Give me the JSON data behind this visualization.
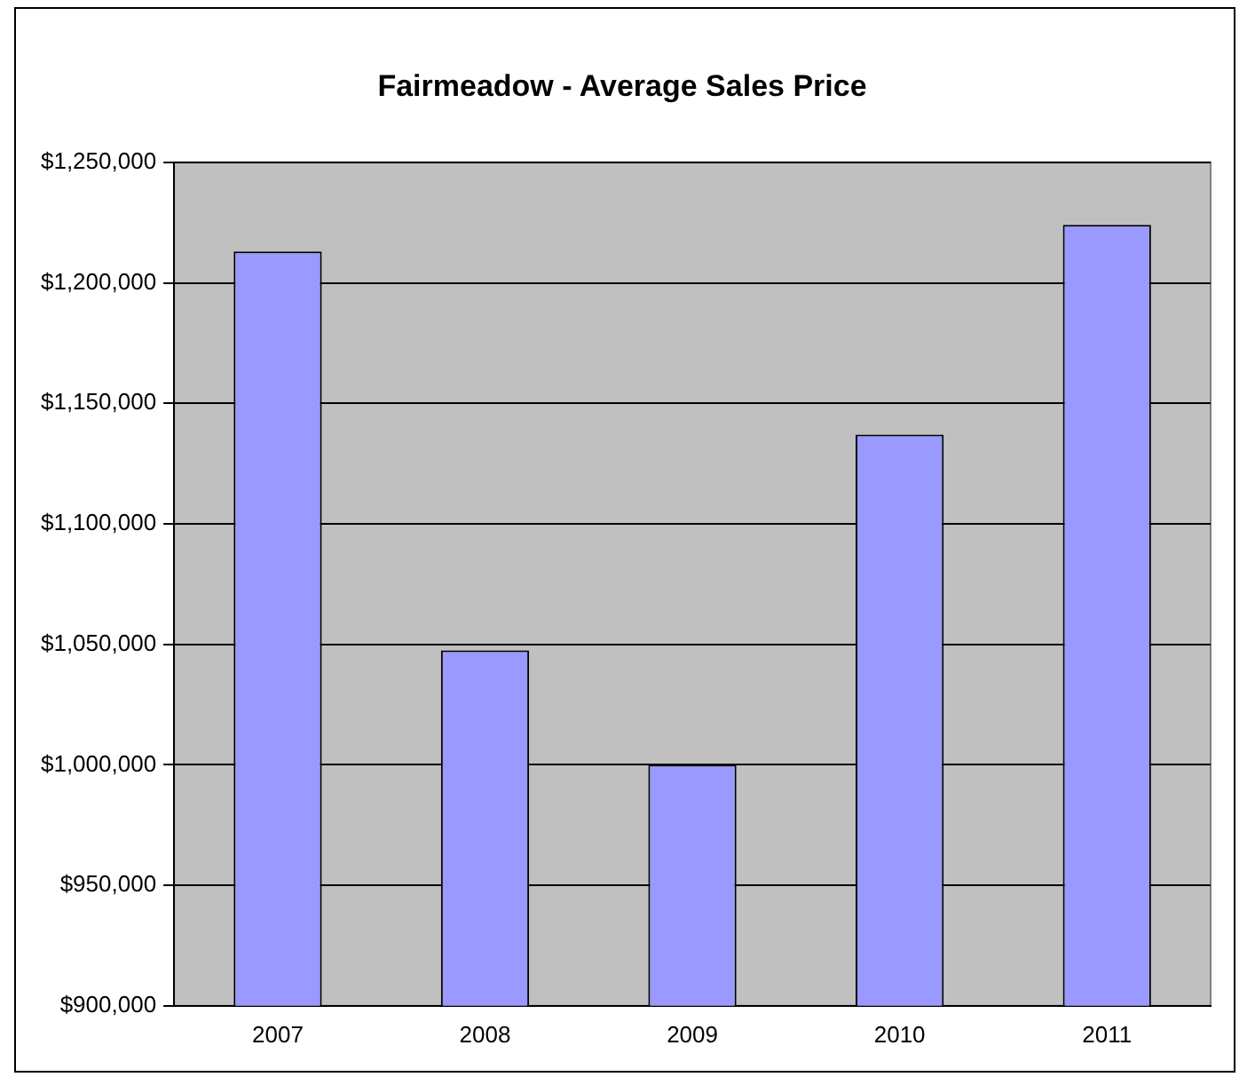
{
  "chart_data": {
    "type": "bar",
    "title": "Fairmeadow - Average Sales Price",
    "categories": [
      "2007",
      "2008",
      "2009",
      "2010",
      "2011"
    ],
    "values": [
      1213000,
      1047500,
      1000000,
      1137000,
      1224000
    ],
    "color": "#9999ff",
    "ylim": [
      900000,
      1250000
    ],
    "yticks": [
      {
        "value": 900000,
        "label": "$900,000"
      },
      {
        "value": 950000,
        "label": "$950,000"
      },
      {
        "value": 1000000,
        "label": "$1,000,000"
      },
      {
        "value": 1050000,
        "label": "$1,050,000"
      },
      {
        "value": 1100000,
        "label": "$1,100,000"
      },
      {
        "value": 1150000,
        "label": "$1,150,000"
      },
      {
        "value": 1200000,
        "label": "$1,200,000"
      },
      {
        "value": 1250000,
        "label": "$1,250,000"
      }
    ],
    "grid": "y",
    "legend": false
  }
}
